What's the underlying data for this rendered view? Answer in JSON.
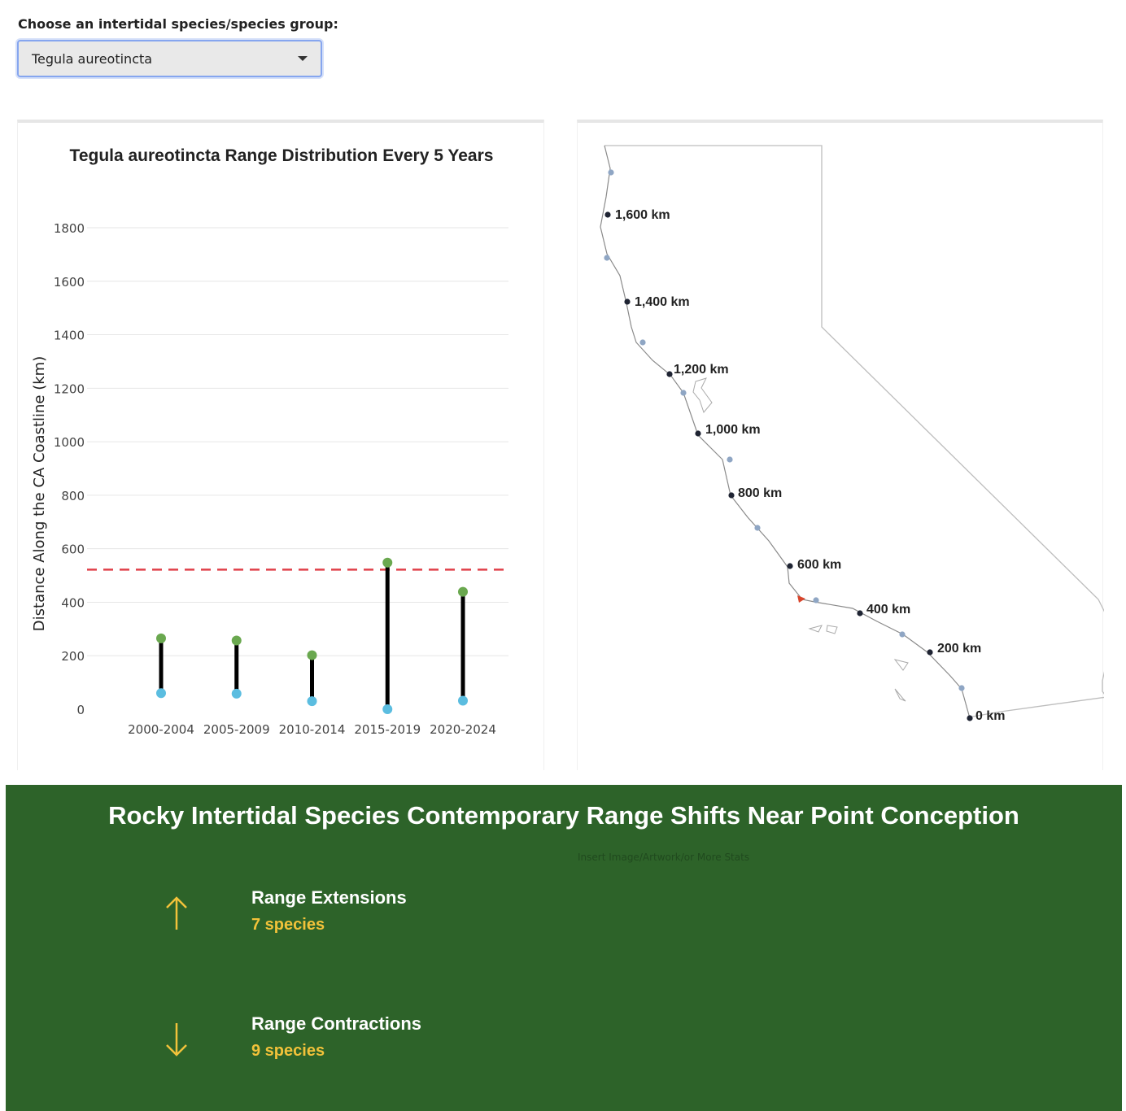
{
  "selector": {
    "label": "Choose an intertidal species/species group:",
    "selected": "Tegula aureotincta"
  },
  "chart_data": {
    "type": "range",
    "title": "Tegula aureotincta Range Distribution Every 5 Years",
    "xlabel": "",
    "ylabel": "Distance Along the CA Coastline (km)",
    "ylim": [
      0,
      1850
    ],
    "yticks": [
      0,
      200,
      400,
      600,
      800,
      1000,
      1200,
      1400,
      1600,
      1800
    ],
    "categories": [
      "2000-2004",
      "2005-2009",
      "2010-2014",
      "2015-2019",
      "2020-2024"
    ],
    "upper": [
      265,
      257,
      202,
      548,
      439
    ],
    "lower": [
      60,
      58,
      30,
      0,
      32
    ],
    "reference_line": 522,
    "grid": true,
    "colors": {
      "upper": "#6aa84f",
      "lower": "#5bbde0",
      "bar": "#000000",
      "reference": "#e0404a"
    }
  },
  "map": {
    "labels": [
      "1,600 km",
      "1,400 km",
      "1,200 km",
      "1,000 km",
      "800 km",
      "600 km",
      "400 km",
      "200 km",
      "0 km"
    ],
    "colors": {
      "outline": "#bdbdbd",
      "coast": "#8a8a8a",
      "marker": "#1f2433",
      "site": "#8fa6c4",
      "highlight": "#d9452b"
    }
  },
  "banner": {
    "title": "Rocky Intertidal Species Contemporary Range Shifts Near Point Conception",
    "note": "Insert Image/Artwork/or More Stats",
    "extensions_title": "Range Extensions",
    "extensions_value": "7 species",
    "contractions_title": "Range Contractions",
    "contractions_value": "9 species",
    "up_icon": "arrow-up-icon",
    "down_icon": "arrow-down-icon",
    "colors": {
      "background": "#2d6329",
      "accent": "#f2c23a"
    }
  }
}
